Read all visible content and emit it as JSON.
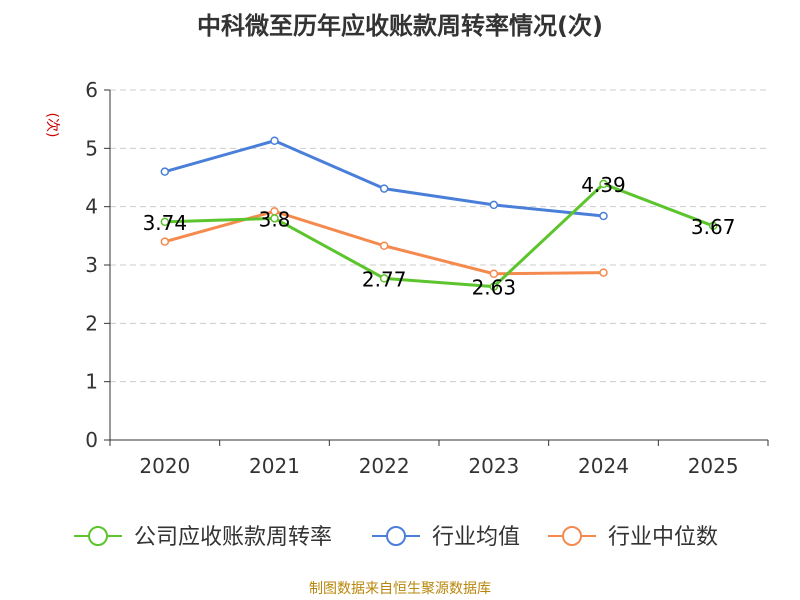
{
  "chart_data": {
    "type": "line",
    "title": "中科微至历年应收账款周转率情况(次)",
    "ylabel": "(次)",
    "xlabel": "",
    "ylim": [
      0,
      6
    ],
    "yticks": [
      0,
      1,
      2,
      3,
      4,
      5,
      6
    ],
    "categories": [
      "2020",
      "2021",
      "2022",
      "2023",
      "2024",
      "2025"
    ],
    "grid": true,
    "legend_position": "bottom",
    "series": [
      {
        "name": "公司应收账款周转率",
        "color": "#5cc42d",
        "values": [
          3.74,
          3.8,
          2.77,
          2.63,
          4.39,
          3.67
        ],
        "labels": [
          "3.74",
          "3.8",
          "2.77",
          "2.63",
          "4.39",
          "3.67"
        ]
      },
      {
        "name": "行业均值",
        "color": "#4a7fd9",
        "values": [
          4.6,
          5.13,
          4.31,
          4.03,
          3.84,
          null
        ]
      },
      {
        "name": "行业中位数",
        "color": "#f58a4f",
        "values": [
          3.4,
          3.92,
          3.33,
          2.85,
          2.87,
          null
        ]
      }
    ]
  },
  "source_note": "制图数据来自恒生聚源数据库"
}
